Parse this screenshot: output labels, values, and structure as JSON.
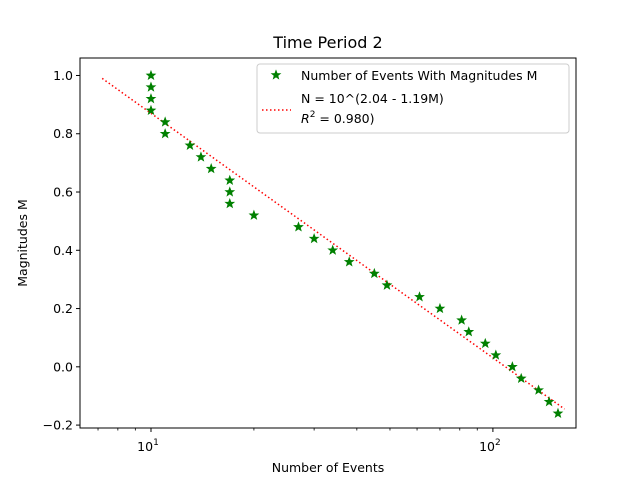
{
  "chart_data": {
    "type": "scatter",
    "title": "Time Period 2",
    "xlabel": "Number of Events",
    "ylabel": "Magnitudes M",
    "xscale": "log",
    "xlim": [
      6.2,
      175
    ],
    "ylim": [
      -0.21,
      1.06
    ],
    "x_ticks": [
      {
        "value": 10,
        "base": "10",
        "exp": "1"
      },
      {
        "value": 100,
        "base": "10",
        "exp": "2"
      }
    ],
    "y_ticks": [
      -0.2,
      0.0,
      0.2,
      0.4,
      0.6,
      0.8,
      1.0
    ],
    "legend_position": "top-right",
    "series": [
      {
        "name": "Number of Events With Magnitudes M",
        "kind": "points",
        "marker": "star",
        "color": "#008000",
        "points": [
          [
            10,
            1.0
          ],
          [
            10,
            0.96
          ],
          [
            10,
            0.92
          ],
          [
            10,
            0.88
          ],
          [
            11,
            0.84
          ],
          [
            11,
            0.8
          ],
          [
            13,
            0.76
          ],
          [
            14,
            0.72
          ],
          [
            15,
            0.68
          ],
          [
            17,
            0.64
          ],
          [
            17,
            0.6
          ],
          [
            17,
            0.56
          ],
          [
            20,
            0.52
          ],
          [
            27,
            0.48
          ],
          [
            30,
            0.44
          ],
          [
            34,
            0.4
          ],
          [
            38,
            0.36
          ],
          [
            45,
            0.32
          ],
          [
            49,
            0.28
          ],
          [
            61,
            0.24
          ],
          [
            70,
            0.2
          ],
          [
            81,
            0.16
          ],
          [
            85,
            0.12
          ],
          [
            95,
            0.08
          ],
          [
            102,
            0.04
          ],
          [
            114,
            0.0
          ],
          [
            121,
            -0.04
          ],
          [
            136,
            -0.08
          ],
          [
            146,
            -0.12
          ],
          [
            155,
            -0.16
          ]
        ]
      },
      {
        "name_line1": "N = 10^(2.04 - 1.19M)",
        "name_line2_prefix": "R",
        "name_line2_sup": "2",
        "name_line2_suffix": " = 0.980)",
        "kind": "fit-line",
        "style": "dotted",
        "color": "#ff0000",
        "points": [
          [
            7.2,
            0.99
          ],
          [
            162,
            -0.145
          ]
        ]
      }
    ]
  }
}
